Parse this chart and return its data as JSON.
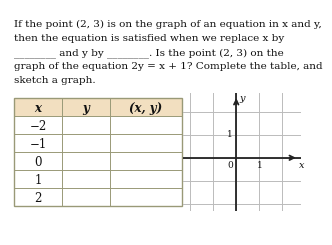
{
  "text_lines": [
    "If the point (2, 3) is on the graph of an equation in x and y,",
    "then the equation is satisfied when we replace x by",
    "________ and y by ________. Is the point (2, 3) on the",
    "graph of the equation 2y = x + 1? Complete the table, and",
    "sketch a graph."
  ],
  "table_x_values": [
    "−2",
    "−1",
    "0",
    "1",
    "2"
  ],
  "table_headers": [
    "x",
    "y",
    "(x, y)"
  ],
  "header_bg": "#f2dfc0",
  "table_bg": "#ffffff",
  "border_color": "#999977",
  "grid_color": "#bbbbbb",
  "text_color": "#111111",
  "axis_color": "#222222",
  "font_size_body": 7.5,
  "font_size_table": 8.5,
  "background": "#ffffff"
}
